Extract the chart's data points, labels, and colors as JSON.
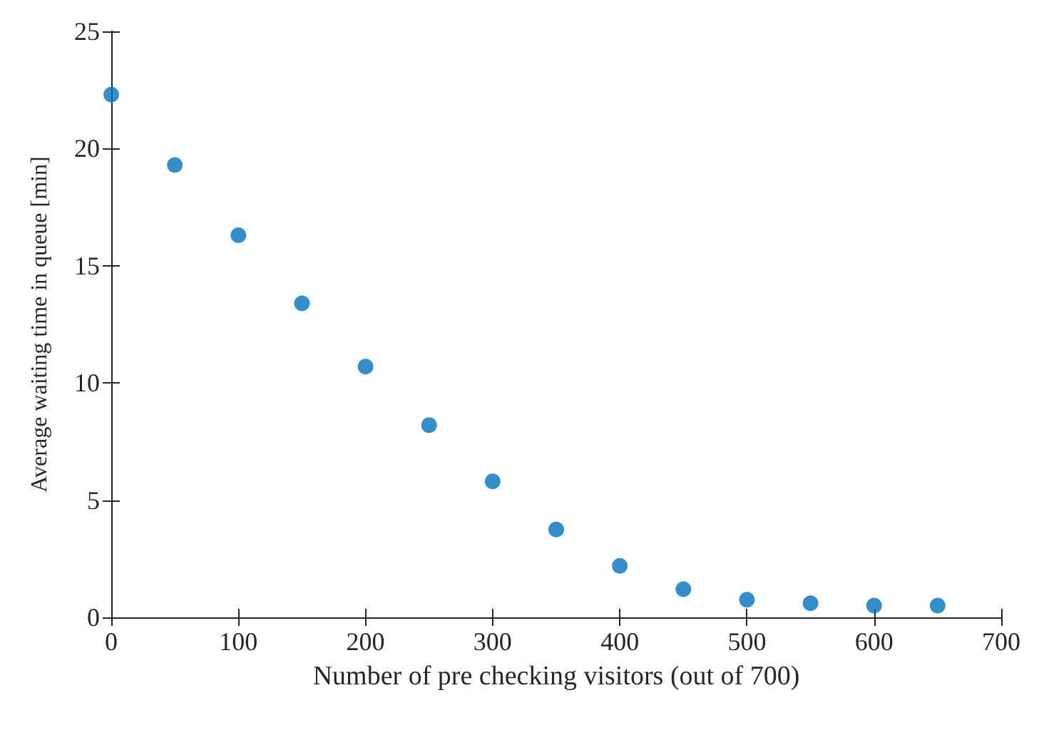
{
  "chart_data": {
    "type": "scatter",
    "xlabel": "Number of pre checking visitors (out of 700)",
    "ylabel": "Average waiting time in queue [min]",
    "x": [
      0,
      50,
      100,
      150,
      200,
      250,
      300,
      350,
      400,
      450,
      500,
      550,
      600,
      650
    ],
    "series": [
      {
        "color": "#0072bd",
        "values": [
          22.3,
          19.3,
          16.3,
          13.4,
          10.7,
          8.2,
          5.8,
          3.75,
          2.2,
          1.2,
          0.75,
          0.6,
          0.5,
          0.5
        ]
      }
    ],
    "xlim": [
      0,
      700
    ],
    "xticks": [
      0,
      100,
      200,
      300,
      400,
      500,
      600,
      700
    ],
    "ylim": [
      0,
      25
    ],
    "yticks": [
      0,
      5,
      10,
      15,
      20,
      25
    ],
    "grid": false,
    "marker": "circle"
  }
}
